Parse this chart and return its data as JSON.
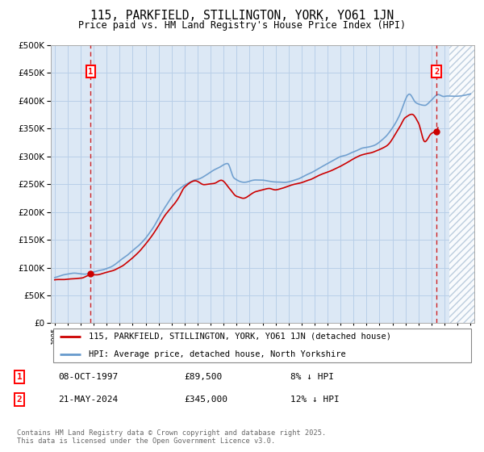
{
  "title": "115, PARKFIELD, STILLINGTON, YORK, YO61 1JN",
  "subtitle": "Price paid vs. HM Land Registry's House Price Index (HPI)",
  "legend_line1": "115, PARKFIELD, STILLINGTON, YORK, YO61 1JN (detached house)",
  "legend_line2": "HPI: Average price, detached house, North Yorkshire",
  "point1_label": "1",
  "point1_date": "08-OCT-1997",
  "point1_price": "£89,500",
  "point1_hpi": "8% ↓ HPI",
  "point2_label": "2",
  "point2_date": "21-MAY-2024",
  "point2_price": "£345,000",
  "point2_hpi": "12% ↓ HPI",
  "footnote": "Contains HM Land Registry data © Crown copyright and database right 2025.\nThis data is licensed under the Open Government Licence v3.0.",
  "ylim": [
    0,
    500000
  ],
  "yticks": [
    0,
    50000,
    100000,
    150000,
    200000,
    250000,
    300000,
    350000,
    400000,
    450000,
    500000
  ],
  "xlim_start": 1994.7,
  "xlim_end": 2027.3,
  "hatch_start": 2025.4,
  "point1_x": 1997.77,
  "point1_y": 89500,
  "point2_x": 2024.39,
  "point2_y": 345000,
  "bg_color": "#dce8f5",
  "grid_color": "#b8cfe8",
  "line_color_red": "#cc0000",
  "line_color_blue": "#6699cc",
  "hatch_color": "#b0c4d8"
}
